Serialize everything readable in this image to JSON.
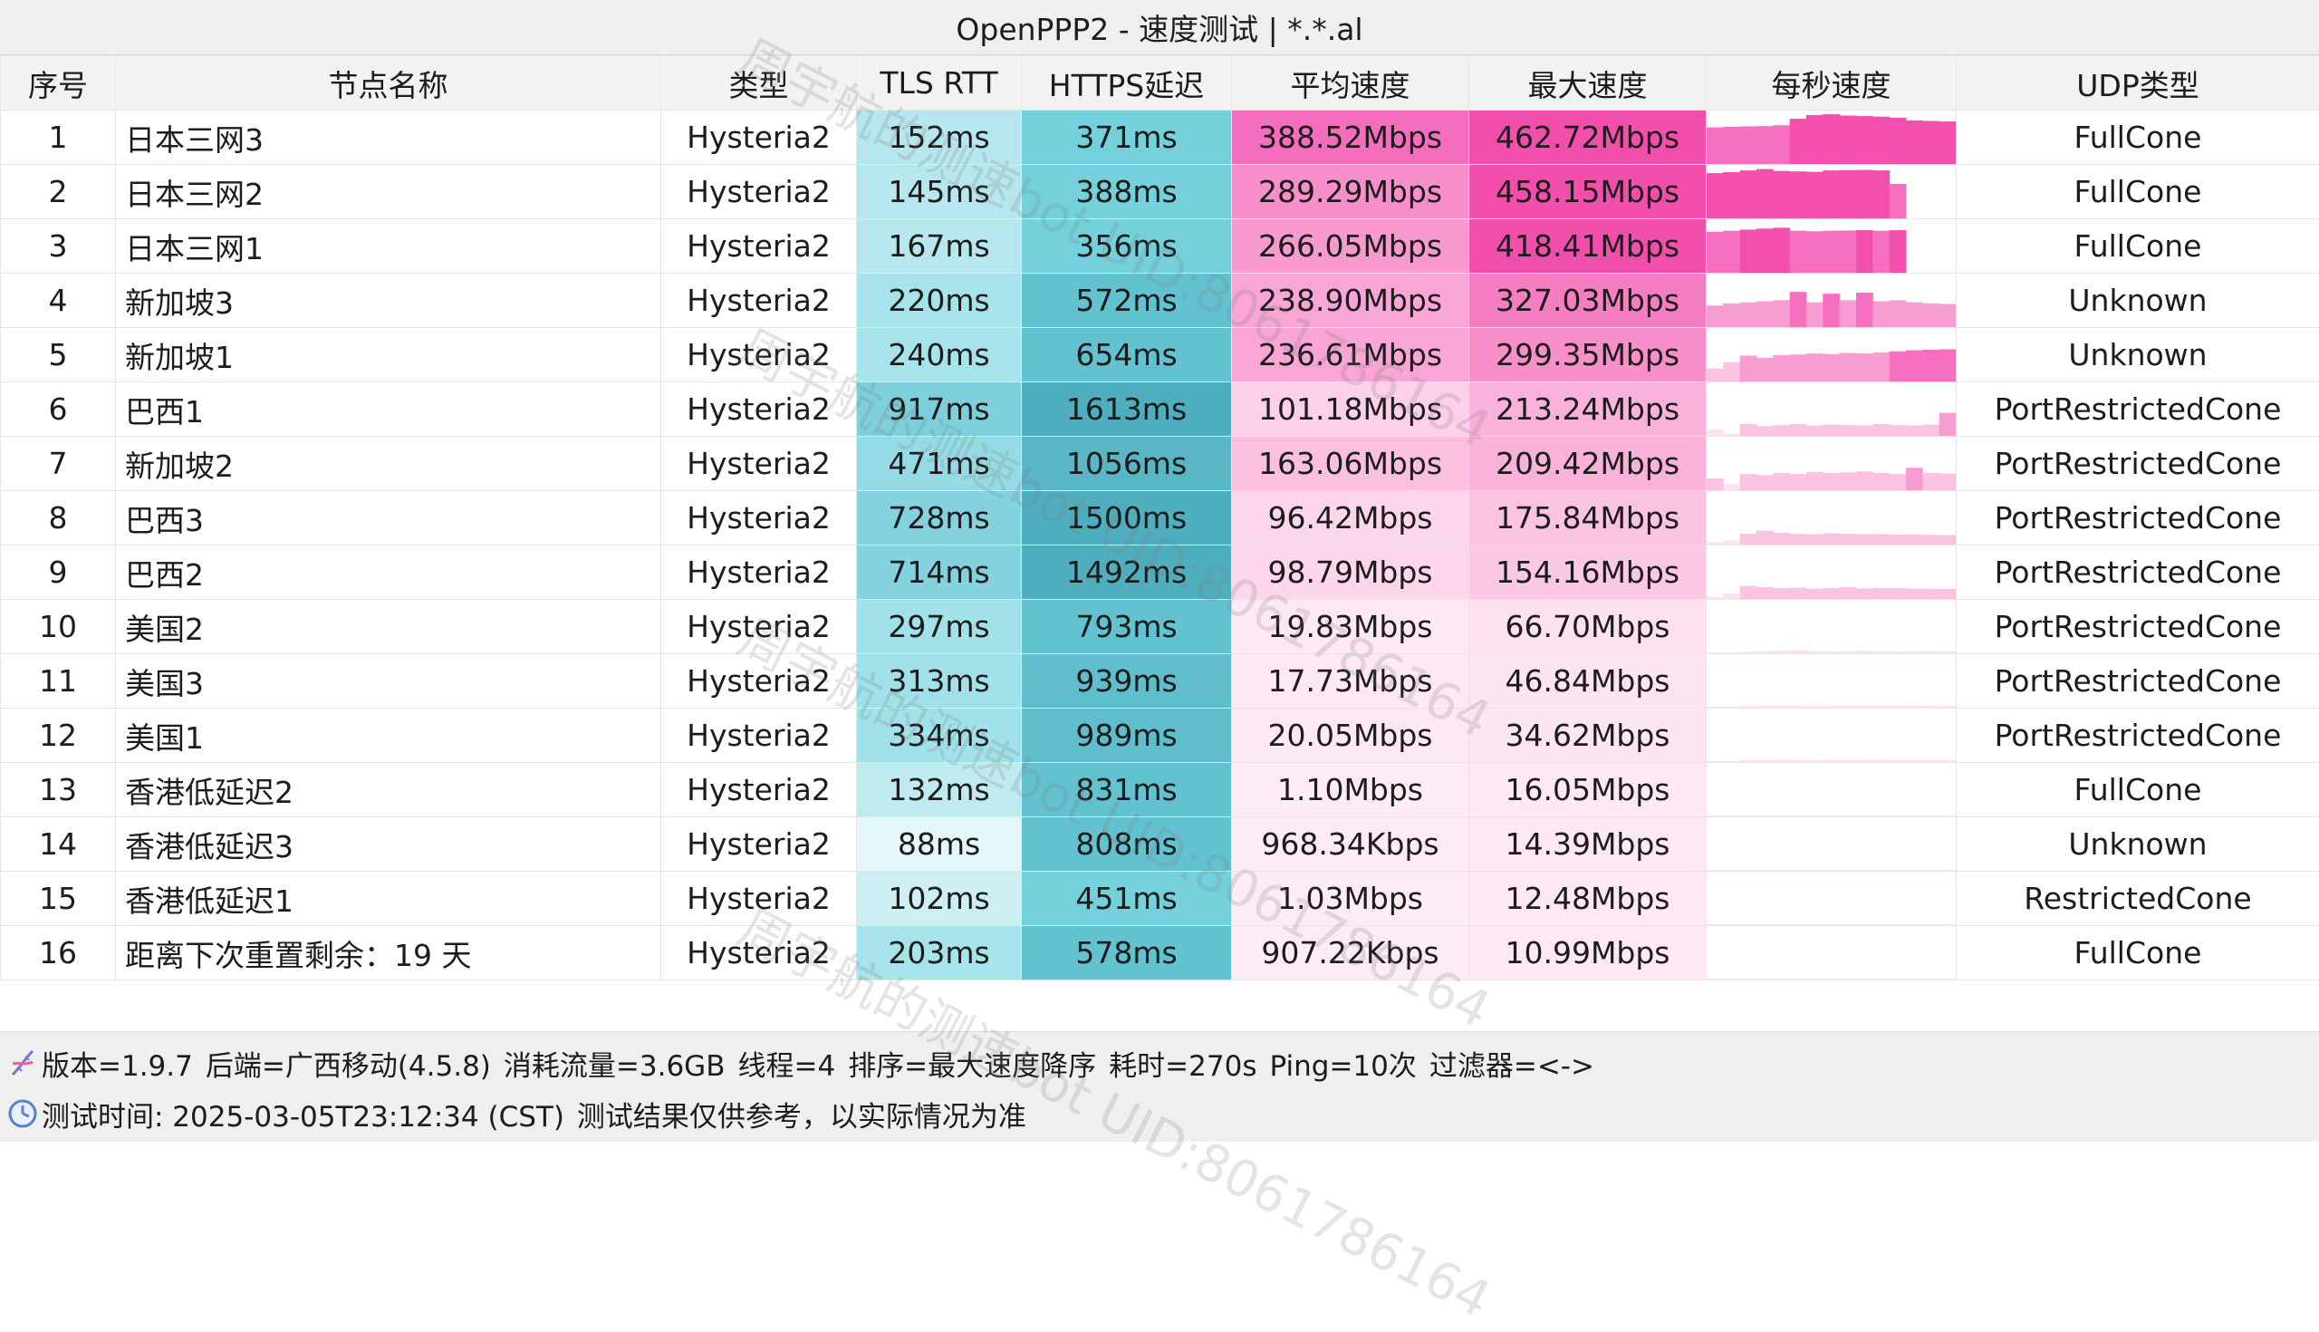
{
  "title": "OpenPPP2 - 速度测试 | *.*.al",
  "watermark": "周宇航的测速bot UID:8061786164",
  "columns": [
    "序号",
    "节点名称",
    "类型",
    "TLS RTT",
    "HTTPS延迟",
    "平均速度",
    "最大速度",
    "每秒速度",
    "UDP类型"
  ],
  "rows": [
    {
      "idx": "1",
      "name": "日本三网3",
      "type": "Hysteria2",
      "tls": "152ms",
      "https": "371ms",
      "avg": "388.52Mbps",
      "max": "462.72Mbps",
      "udp": "FullCone",
      "tls_color": "#b6e7ee",
      "https_color": "#74d1dc",
      "avg_color": "#f56ebd",
      "max_color": "#f24fac",
      "speed": [
        340,
        345,
        350,
        352,
        360,
        420,
        455,
        462,
        450,
        445,
        440,
        430,
        405,
        400,
        395
      ]
    },
    {
      "idx": "2",
      "name": "日本三网2",
      "type": "Hysteria2",
      "tls": "145ms",
      "https": "388ms",
      "avg": "289.29Mbps",
      "max": "458.15Mbps",
      "udp": "FullCone",
      "tls_color": "#b6e7ee",
      "https_color": "#74d1dc",
      "avg_color": "#f78fcb",
      "max_color": "#f24fac",
      "speed": [
        420,
        430,
        445,
        458,
        440,
        436,
        432,
        445,
        448,
        450,
        445,
        320,
        0,
        0,
        0
      ]
    },
    {
      "idx": "3",
      "name": "日本三网1",
      "type": "Hysteria2",
      "tls": "167ms",
      "https": "356ms",
      "avg": "266.05Mbps",
      "max": "418.41Mbps",
      "udp": "FullCone",
      "tls_color": "#b6e7ee",
      "https_color": "#74d1dc",
      "avg_color": "#f89ad0",
      "max_color": "#f24fac",
      "speed": [
        380,
        390,
        400,
        410,
        418,
        390,
        385,
        390,
        392,
        395,
        390,
        395,
        0,
        0,
        0
      ]
    },
    {
      "idx": "4",
      "name": "新加坡3",
      "type": "Hysteria2",
      "tls": "220ms",
      "https": "572ms",
      "avg": "238.90Mbps",
      "max": "327.03Mbps",
      "udp": "Unknown",
      "tls_color": "#a6e3eb",
      "https_color": "#63c2d0",
      "avg_color": "#f9a6d6",
      "max_color": "#f57ec3",
      "speed": [
        200,
        220,
        230,
        240,
        250,
        327,
        230,
        310,
        250,
        320,
        240,
        250,
        230,
        220,
        215
      ]
    },
    {
      "idx": "5",
      "name": "新加坡1",
      "type": "Hysteria2",
      "tls": "240ms",
      "https": "654ms",
      "avg": "236.61Mbps",
      "max": "299.35Mbps",
      "udp": "Unknown",
      "tls_color": "#a6e3eb",
      "https_color": "#63c2d0",
      "avg_color": "#f9a6d6",
      "max_color": "#f78fcb",
      "speed": [
        120,
        180,
        240,
        220,
        245,
        250,
        260,
        255,
        265,
        260,
        270,
        280,
        290,
        295,
        299
      ]
    },
    {
      "idx": "6",
      "name": "巴西1",
      "type": "Hysteria2",
      "tls": "917ms",
      "https": "1613ms",
      "avg": "101.18Mbps",
      "max": "213.24Mbps",
      "udp": "PortRestrictedCone",
      "tls_color": "#7ccfdb",
      "https_color": "#4faebd",
      "avg_color": "#fcd0e8",
      "max_color": "#fab2da",
      "speed": [
        60,
        20,
        110,
        90,
        100,
        110,
        95,
        105,
        100,
        98,
        110,
        100,
        95,
        105,
        213
      ]
    },
    {
      "idx": "7",
      "name": "新加坡2",
      "type": "Hysteria2",
      "tls": "471ms",
      "https": "1056ms",
      "avg": "163.06Mbps",
      "max": "209.42Mbps",
      "udp": "PortRestrictedCone",
      "tls_color": "#95dbe5",
      "https_color": "#58b6c5",
      "avg_color": "#fbbfe0",
      "max_color": "#fab2da",
      "speed": [
        110,
        60,
        150,
        140,
        160,
        150,
        170,
        160,
        165,
        175,
        160,
        150,
        209,
        160,
        155
      ]
    },
    {
      "idx": "8",
      "name": "巴西3",
      "type": "Hysteria2",
      "tls": "728ms",
      "https": "1500ms",
      "avg": "96.42Mbps",
      "max": "175.84Mbps",
      "udp": "PortRestrictedCone",
      "tls_color": "#83d2dd",
      "https_color": "#4faebd",
      "avg_color": "#fcd6eb",
      "max_color": "#fbc3e2",
      "speed": [
        20,
        40,
        100,
        130,
        110,
        100,
        95,
        105,
        100,
        96,
        98,
        92,
        94,
        90,
        88
      ]
    },
    {
      "idx": "9",
      "name": "巴西2",
      "type": "Hysteria2",
      "tls": "714ms",
      "https": "1492ms",
      "avg": "98.79Mbps",
      "max": "154.16Mbps",
      "udp": "PortRestrictedCone",
      "tls_color": "#83d2dd",
      "https_color": "#4faebd",
      "avg_color": "#fcd6eb",
      "max_color": "#fbc9e5",
      "speed": [
        20,
        50,
        120,
        110,
        100,
        105,
        95,
        100,
        110,
        98,
        102,
        100,
        96,
        94,
        92
      ]
    },
    {
      "idx": "10",
      "name": "美国2",
      "type": "Hysteria2",
      "tls": "297ms",
      "https": "793ms",
      "avg": "19.83Mbps",
      "max": "66.70Mbps",
      "udp": "PortRestrictedCone",
      "tls_color": "#a1e1ea",
      "https_color": "#63c2d0",
      "avg_color": "#fde8f3",
      "max_color": "#fde1f0",
      "speed": [
        5,
        10,
        15,
        20,
        25,
        30,
        22,
        18,
        20,
        25,
        20,
        18,
        20,
        22,
        20
      ]
    },
    {
      "idx": "11",
      "name": "美国3",
      "type": "Hysteria2",
      "tls": "313ms",
      "https": "939ms",
      "avg": "17.73Mbps",
      "max": "46.84Mbps",
      "udp": "PortRestrictedCone",
      "tls_color": "#a1e1ea",
      "https_color": "#5fbdcc",
      "avg_color": "#fde8f3",
      "max_color": "#fde4f1",
      "speed": [
        5,
        10,
        15,
        18,
        20,
        18,
        16,
        20,
        18,
        17,
        19,
        18,
        16,
        17,
        18
      ]
    },
    {
      "idx": "12",
      "name": "美国1",
      "type": "Hysteria2",
      "tls": "334ms",
      "https": "989ms",
      "avg": "20.05Mbps",
      "max": "34.62Mbps",
      "udp": "PortRestrictedCone",
      "tls_color": "#a1e1ea",
      "https_color": "#5fbdcc",
      "avg_color": "#fde8f3",
      "max_color": "#fde6f2",
      "speed": [
        5,
        10,
        18,
        20,
        22,
        20,
        18,
        21,
        20,
        19,
        22,
        20,
        21,
        20,
        19
      ]
    },
    {
      "idx": "13",
      "name": "香港低延迟2",
      "type": "Hysteria2",
      "tls": "132ms",
      "https": "831ms",
      "avg": "1.10Mbps",
      "max": "16.05Mbps",
      "udp": "FullCone",
      "tls_color": "#bfeaf0",
      "https_color": "#63c2d0",
      "avg_color": "#fdebf5",
      "max_color": "#fde8f3",
      "speed": [
        1,
        1,
        1,
        1,
        1,
        1,
        1,
        1,
        1,
        1,
        1,
        1,
        1,
        1,
        1
      ]
    },
    {
      "idx": "14",
      "name": "香港低延迟3",
      "type": "Hysteria2",
      "tls": "88ms",
      "https": "808ms",
      "avg": "968.34Kbps",
      "max": "14.39Mbps",
      "udp": "Unknown",
      "tls_color": "#e3f6f8",
      "https_color": "#63c2d0",
      "avg_color": "#fdebf5",
      "max_color": "#fde8f3",
      "speed": [
        1,
        1,
        1,
        1,
        1,
        1,
        1,
        1,
        1,
        1,
        1,
        1,
        1,
        1,
        1
      ]
    },
    {
      "idx": "15",
      "name": "香港低延迟1",
      "type": "Hysteria2",
      "tls": "102ms",
      "https": "451ms",
      "avg": "1.03Mbps",
      "max": "12.48Mbps",
      "udp": "RestrictedCone",
      "tls_color": "#cdeef3",
      "https_color": "#74d1dc",
      "avg_color": "#fdebf5",
      "max_color": "#fde8f3",
      "speed": [
        1,
        1,
        1,
        1,
        1,
        1,
        1,
        1,
        1,
        1,
        1,
        1,
        1,
        1,
        1
      ]
    },
    {
      "idx": "16",
      "name": "距离下次重置剩余：19 天",
      "type": "Hysteria2",
      "tls": "203ms",
      "https": "578ms",
      "avg": "907.22Kbps",
      "max": "10.99Mbps",
      "udp": "FullCone",
      "tls_color": "#a6e3eb",
      "https_color": "#63c2d0",
      "avg_color": "#fdebf5",
      "max_color": "#fde8f3",
      "speed": [
        1,
        1,
        1,
        1,
        1,
        1,
        1,
        1,
        1,
        1,
        1,
        1,
        1,
        1,
        1
      ]
    }
  ],
  "speed_max": 462.72,
  "footer": {
    "line1": [
      "版本=1.9.7",
      "后端=广西移动(4.5.8)",
      "消耗流量=3.6GB",
      "线程=4",
      "排序=最大速度降序",
      "耗时=270s",
      "Ping=10次",
      "过滤器=<->"
    ],
    "line2": [
      "测试时间: 2025-03-05T23:12:34 (CST)",
      "测试结果仅供参考，以实际情况为准"
    ],
    "icon1": "dna-icon",
    "icon2": "clock-icon"
  }
}
